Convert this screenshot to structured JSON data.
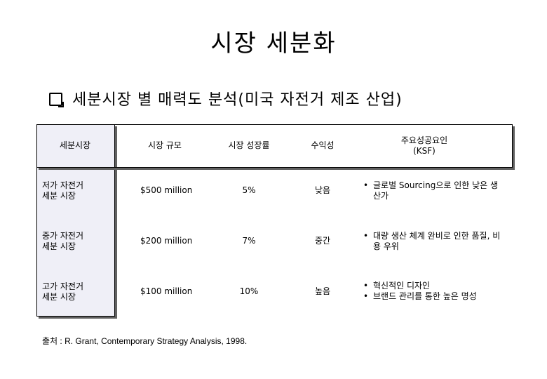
{
  "title": "시장 세분화",
  "subtitle": "세분시장 별 매력도 분석(미국 자전거 제조 산업)",
  "table": {
    "headers": [
      "세분시장",
      "시장 규모",
      "시장 성장률",
      "수익성",
      "주요성공요인\n(KSF)"
    ],
    "rows": [
      {
        "segment": "저가 자전거\n세분 시장",
        "size": "$500 million",
        "growth": "5%",
        "profit": "낮음",
        "ksf": [
          "글로벌 Sourcing으로 인한 낮은 생산가"
        ]
      },
      {
        "segment": "중가 자전거\n세분 시장",
        "size": "$200 million",
        "growth": "7%",
        "profit": "중간",
        "ksf": [
          "대량 생산 체계 완비로 인한 품질, 비용 우위"
        ]
      },
      {
        "segment": "고가 자전거\n세분 시장",
        "size": "$100 million",
        "growth": "10%",
        "profit": "높음",
        "ksf": [
          "혁신적인 디자인",
          "브랜드 관리를 통한 높은 명성"
        ]
      }
    ]
  },
  "source": "출처 : R. Grant, Contemporary Strategy Analysis, 1998."
}
